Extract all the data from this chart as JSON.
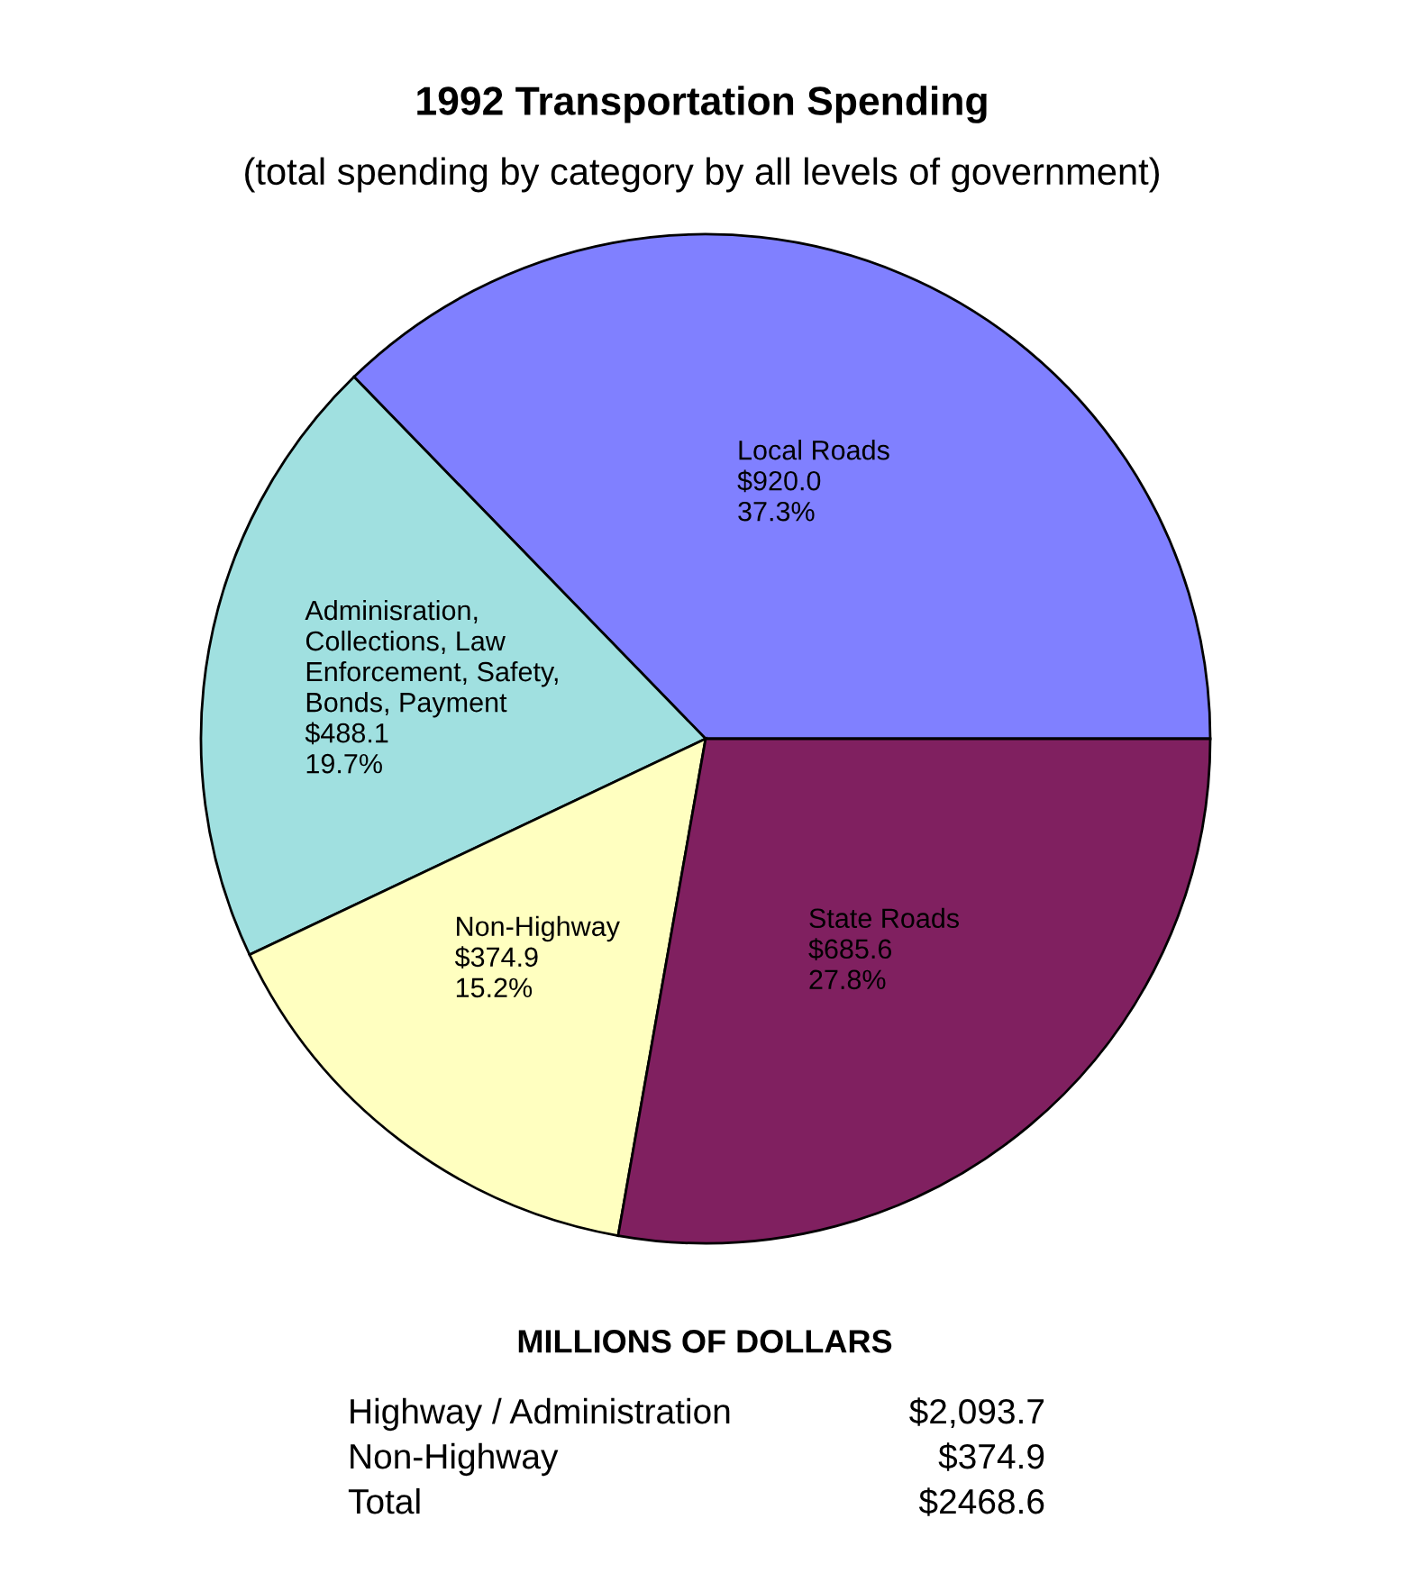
{
  "chart_data": {
    "type": "pie",
    "title": "1992 Transportation Spending",
    "subtitle": "(total spending by category by all levels of government)",
    "categories": [
      "Local Roads",
      "Adminisration,\nCollections, Law\nEnforcement, Safety,\nBonds, Payment",
      "Non-Highway",
      "State Roads"
    ],
    "values": [
      920.0,
      488.1,
      374.9,
      685.6
    ],
    "value_labels": [
      "$920.0\n37.3%",
      "$488.1\n19.7%",
      "$374.9\n15.2%",
      "$685.6\n27.8%"
    ],
    "colors": [
      "#8080ff",
      "#a0e0e0",
      "#ffffc0",
      "#802060"
    ],
    "annotations": [
      "MILLIONS OF DOLLARS",
      "Highway / Administration",
      "$2,093.7",
      "Non-Highway",
      "$374.9",
      "Total",
      "$2468.6"
    ]
  }
}
